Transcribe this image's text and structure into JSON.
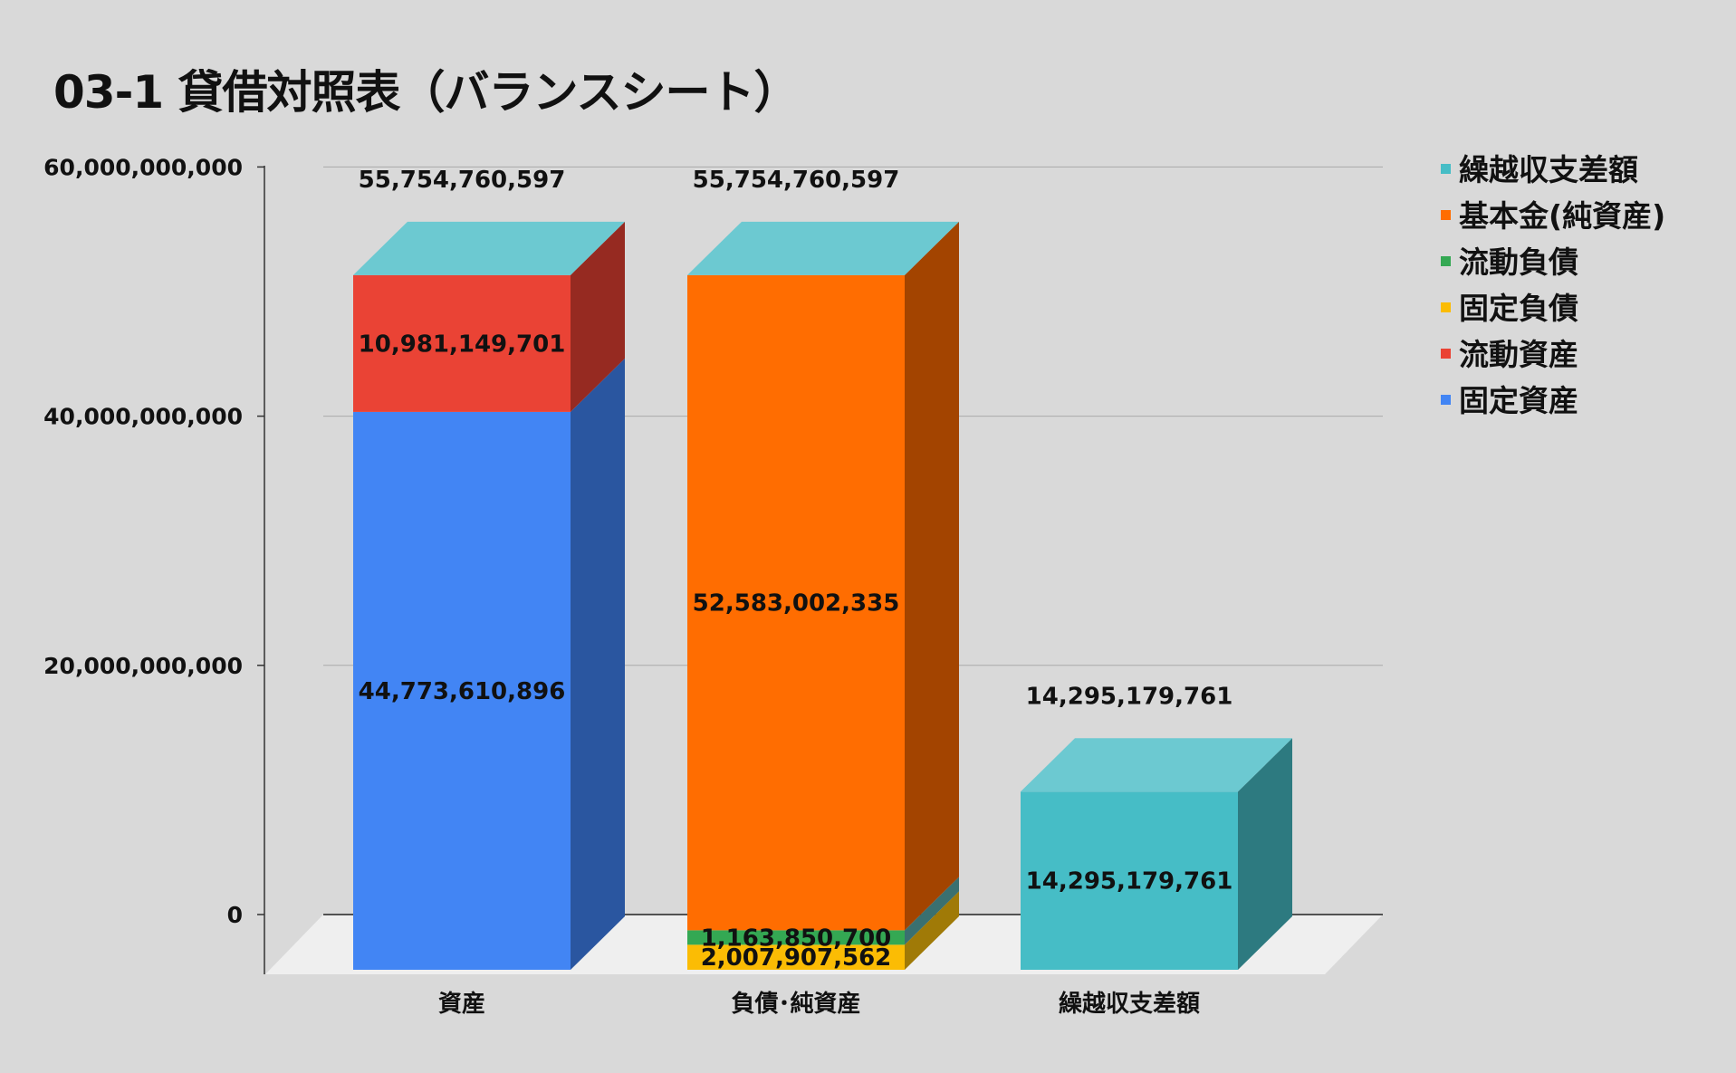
{
  "chart_data": {
    "type": "bar",
    "stacked": true,
    "three_d": true,
    "title": "03-1 貸借対照表（バランスシート）",
    "xlabel": "",
    "ylabel": "",
    "ylim": [
      0,
      60000000000
    ],
    "y_ticks": [
      "0",
      "20,000,000,000",
      "40,000,000,000",
      "60,000,000,000"
    ],
    "y_tick_values": [
      0,
      20000000000,
      40000000000,
      60000000000
    ],
    "grid": true,
    "legend_position": "right",
    "categories": [
      "資産",
      "負債･純資産",
      "繰越収支差額"
    ],
    "series": [
      {
        "name": "固定資産",
        "color": "#4285F4",
        "side": "#2A56A0",
        "values": [
          44773610896,
          0,
          0
        ],
        "labels": [
          "44,773,610,896",
          "",
          ""
        ]
      },
      {
        "name": "流動資産",
        "color": "#EA4335",
        "side": "#962A21",
        "values": [
          10981149701,
          0,
          0
        ],
        "labels": [
          "10,981,149,701",
          "",
          ""
        ]
      },
      {
        "name": "固定負債",
        "color": "#FBBC04",
        "side": "#A07A07",
        "values": [
          0,
          2007907562,
          0
        ],
        "labels": [
          "",
          "2,007,907,562",
          ""
        ]
      },
      {
        "name": "流動負債",
        "color": "#34A853",
        "side": "#3A7070",
        "values": [
          0,
          1163850700,
          0
        ],
        "labels": [
          "",
          "1,163,850,700",
          ""
        ]
      },
      {
        "name": "基本金(純資産)",
        "color": "#FF6D01",
        "side": "#A34400",
        "values": [
          0,
          52583002335,
          0
        ],
        "labels": [
          "",
          "52,583,002,335",
          ""
        ]
      },
      {
        "name": "繰越収支差額",
        "color": "#46BDC6",
        "side": "#2D7A80",
        "values": [
          0,
          0,
          14295179761
        ],
        "labels": [
          "",
          "",
          "14,295,179,761"
        ]
      }
    ],
    "totals": [
      "55,754,760,597",
      "55,754,760,597",
      "14,295,179,761"
    ],
    "top_face_color": "#6CC9D1",
    "legend_order": [
      "繰越収支差額",
      "基本金(純資産)",
      "流動負債",
      "固定負債",
      "流動資産",
      "固定資産"
    ]
  }
}
